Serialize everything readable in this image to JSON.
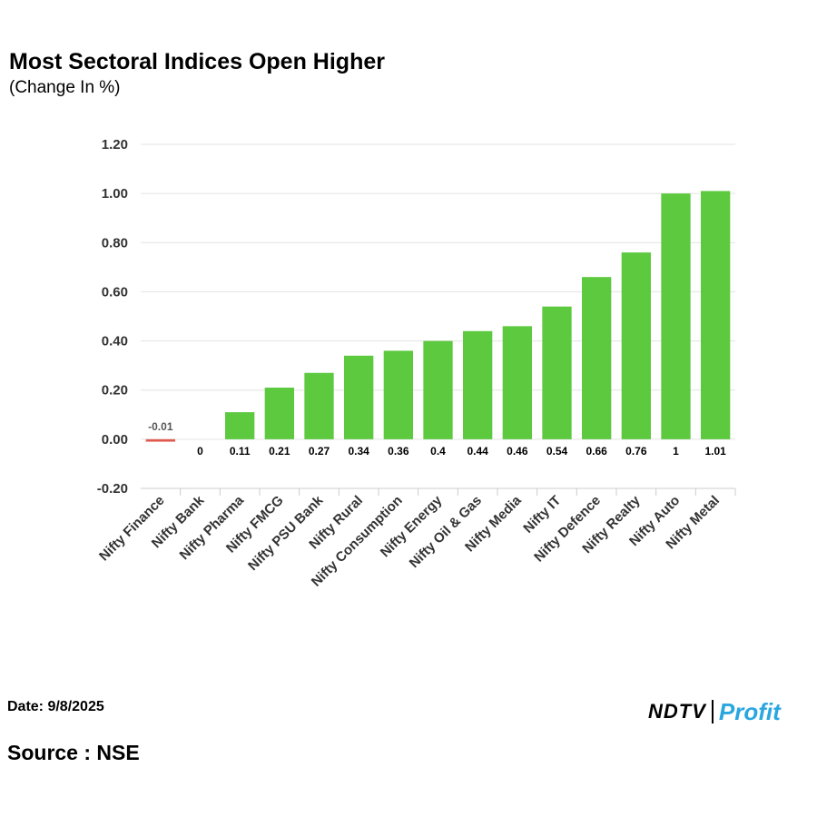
{
  "header": {
    "title": "Most Sectoral Indices Open Higher",
    "subtitle": "(Change In %)"
  },
  "footer": {
    "date": "Date: 9/8/2025",
    "source": "Source : NSE",
    "logo_left": "NDTV",
    "logo_right": "Profit"
  },
  "colors": {
    "positive": "#5cc93f",
    "negative": "#e05a4f",
    "grid": "#e3e3e3"
  },
  "chart_data": {
    "type": "bar",
    "categories": [
      "Nifty Finance",
      "Nifty Bank",
      "Nifty Pharma",
      "Nifty FMCG",
      "Nifty PSU Bank",
      "Nifty Rural",
      "Nifty Consumption",
      "Nifty Energy",
      "Nifty Oil & Gas",
      "Nifty Media",
      "Nifty IT",
      "Nifty Defence",
      "Nifty Realty",
      "Nifty Auto",
      "Nifty Metal"
    ],
    "values": [
      -0.01,
      0,
      0.11,
      0.21,
      0.27,
      0.34,
      0.36,
      0.4,
      0.44,
      0.46,
      0.54,
      0.66,
      0.76,
      1,
      1.01
    ],
    "value_labels": [
      "-0.01",
      "0",
      "0.11",
      "0.21",
      "0.27",
      "0.34",
      "0.36",
      "0.4",
      "0.44",
      "0.46",
      "0.54",
      "0.66",
      "0.76",
      "1",
      "1.01"
    ],
    "yticks": [
      "-0.20",
      "0.00",
      "0.20",
      "0.40",
      "0.60",
      "0.80",
      "1.00",
      "1.20"
    ],
    "ylim": [
      -0.2,
      1.2
    ],
    "grid": true,
    "legend": "none"
  }
}
